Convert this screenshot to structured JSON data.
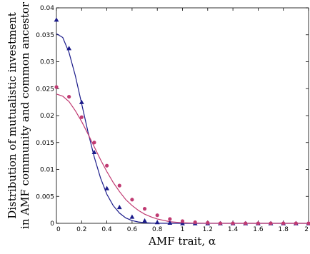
{
  "chart_data": {
    "type": "scatter",
    "title": "",
    "xlabel": "AMF trait, α",
    "ylabel": [
      "Distribution of mutualistic investment",
      "in AMF community and common ancestor"
    ],
    "xlim": [
      0,
      2
    ],
    "ylim": [
      0,
      0.04
    ],
    "x_ticks": [
      "0",
      "0.2",
      "0.4",
      "0.6",
      "0.8",
      "1",
      "1.2",
      "1.4",
      "1.6",
      "1.8",
      "2"
    ],
    "y_ticks": [
      "0",
      "0.005",
      "0.01",
      "0.015",
      "0.02",
      "0.025",
      "0.03",
      "0.035",
      "0.04"
    ],
    "grid": false,
    "legend": "none",
    "series": [
      {
        "color": "#1b1b8a",
        "marker": "triangle",
        "points_x": [
          0,
          0.1,
          0.2,
          0.3,
          0.4,
          0.5,
          0.6,
          0.7,
          0.8,
          0.9,
          1.0,
          1.1,
          1.2,
          1.3,
          1.4,
          1.5,
          1.6,
          1.7,
          1.8,
          1.9,
          2.0
        ],
        "points_y": [
          0.0378,
          0.0325,
          0.0225,
          0.0132,
          0.0065,
          0.003,
          0.0012,
          0.0005,
          0.0002,
          0.0001,
          0,
          0,
          0,
          0,
          0,
          0,
          0,
          0,
          0,
          0,
          0
        ],
        "curve_x": [
          0,
          0.05,
          0.1,
          0.15,
          0.2,
          0.25,
          0.3,
          0.35,
          0.4,
          0.45,
          0.5,
          0.55,
          0.6,
          0.65,
          0.7,
          0.75,
          0.8,
          0.9,
          1.0,
          1.2,
          1.4,
          1.6,
          1.8,
          2.0
        ],
        "curve_y": [
          0.0352,
          0.0345,
          0.0317,
          0.0274,
          0.0222,
          0.017,
          0.0123,
          0.0084,
          0.0054,
          0.0033,
          0.0019,
          0.001,
          0.0005,
          0.00025,
          0.00012,
          5e-05,
          2e-05,
          0,
          0,
          0,
          0,
          0,
          0,
          0
        ]
      },
      {
        "color": "#c03a72",
        "marker": "circle",
        "points_x": [
          0,
          0.1,
          0.2,
          0.3,
          0.4,
          0.5,
          0.6,
          0.7,
          0.8,
          0.9,
          1.0,
          1.1,
          1.2,
          1.3,
          1.4,
          1.5,
          1.6,
          1.7,
          1.8,
          1.9,
          2.0
        ],
        "points_y": [
          0.0253,
          0.0235,
          0.0197,
          0.015,
          0.0107,
          0.007,
          0.0044,
          0.0027,
          0.0015,
          0.0008,
          0.0004,
          0.0002,
          0.0001,
          0,
          0,
          0,
          0,
          0,
          0,
          0,
          0
        ],
        "curve_x": [
          0,
          0.05,
          0.1,
          0.15,
          0.2,
          0.25,
          0.3,
          0.35,
          0.4,
          0.45,
          0.5,
          0.55,
          0.6,
          0.65,
          0.7,
          0.75,
          0.8,
          0.9,
          1.0,
          1.1,
          1.2,
          1.4,
          1.6,
          1.8,
          2.0
        ],
        "curve_y": [
          0.024,
          0.0236,
          0.0226,
          0.0209,
          0.0189,
          0.0166,
          0.0142,
          0.0118,
          0.0096,
          0.0076,
          0.0059,
          0.0044,
          0.0033,
          0.0024,
          0.0017,
          0.0012,
          0.0008,
          0.0003,
          0.0001,
          4e-05,
          1e-05,
          0,
          0,
          0,
          0
        ]
      }
    ]
  }
}
